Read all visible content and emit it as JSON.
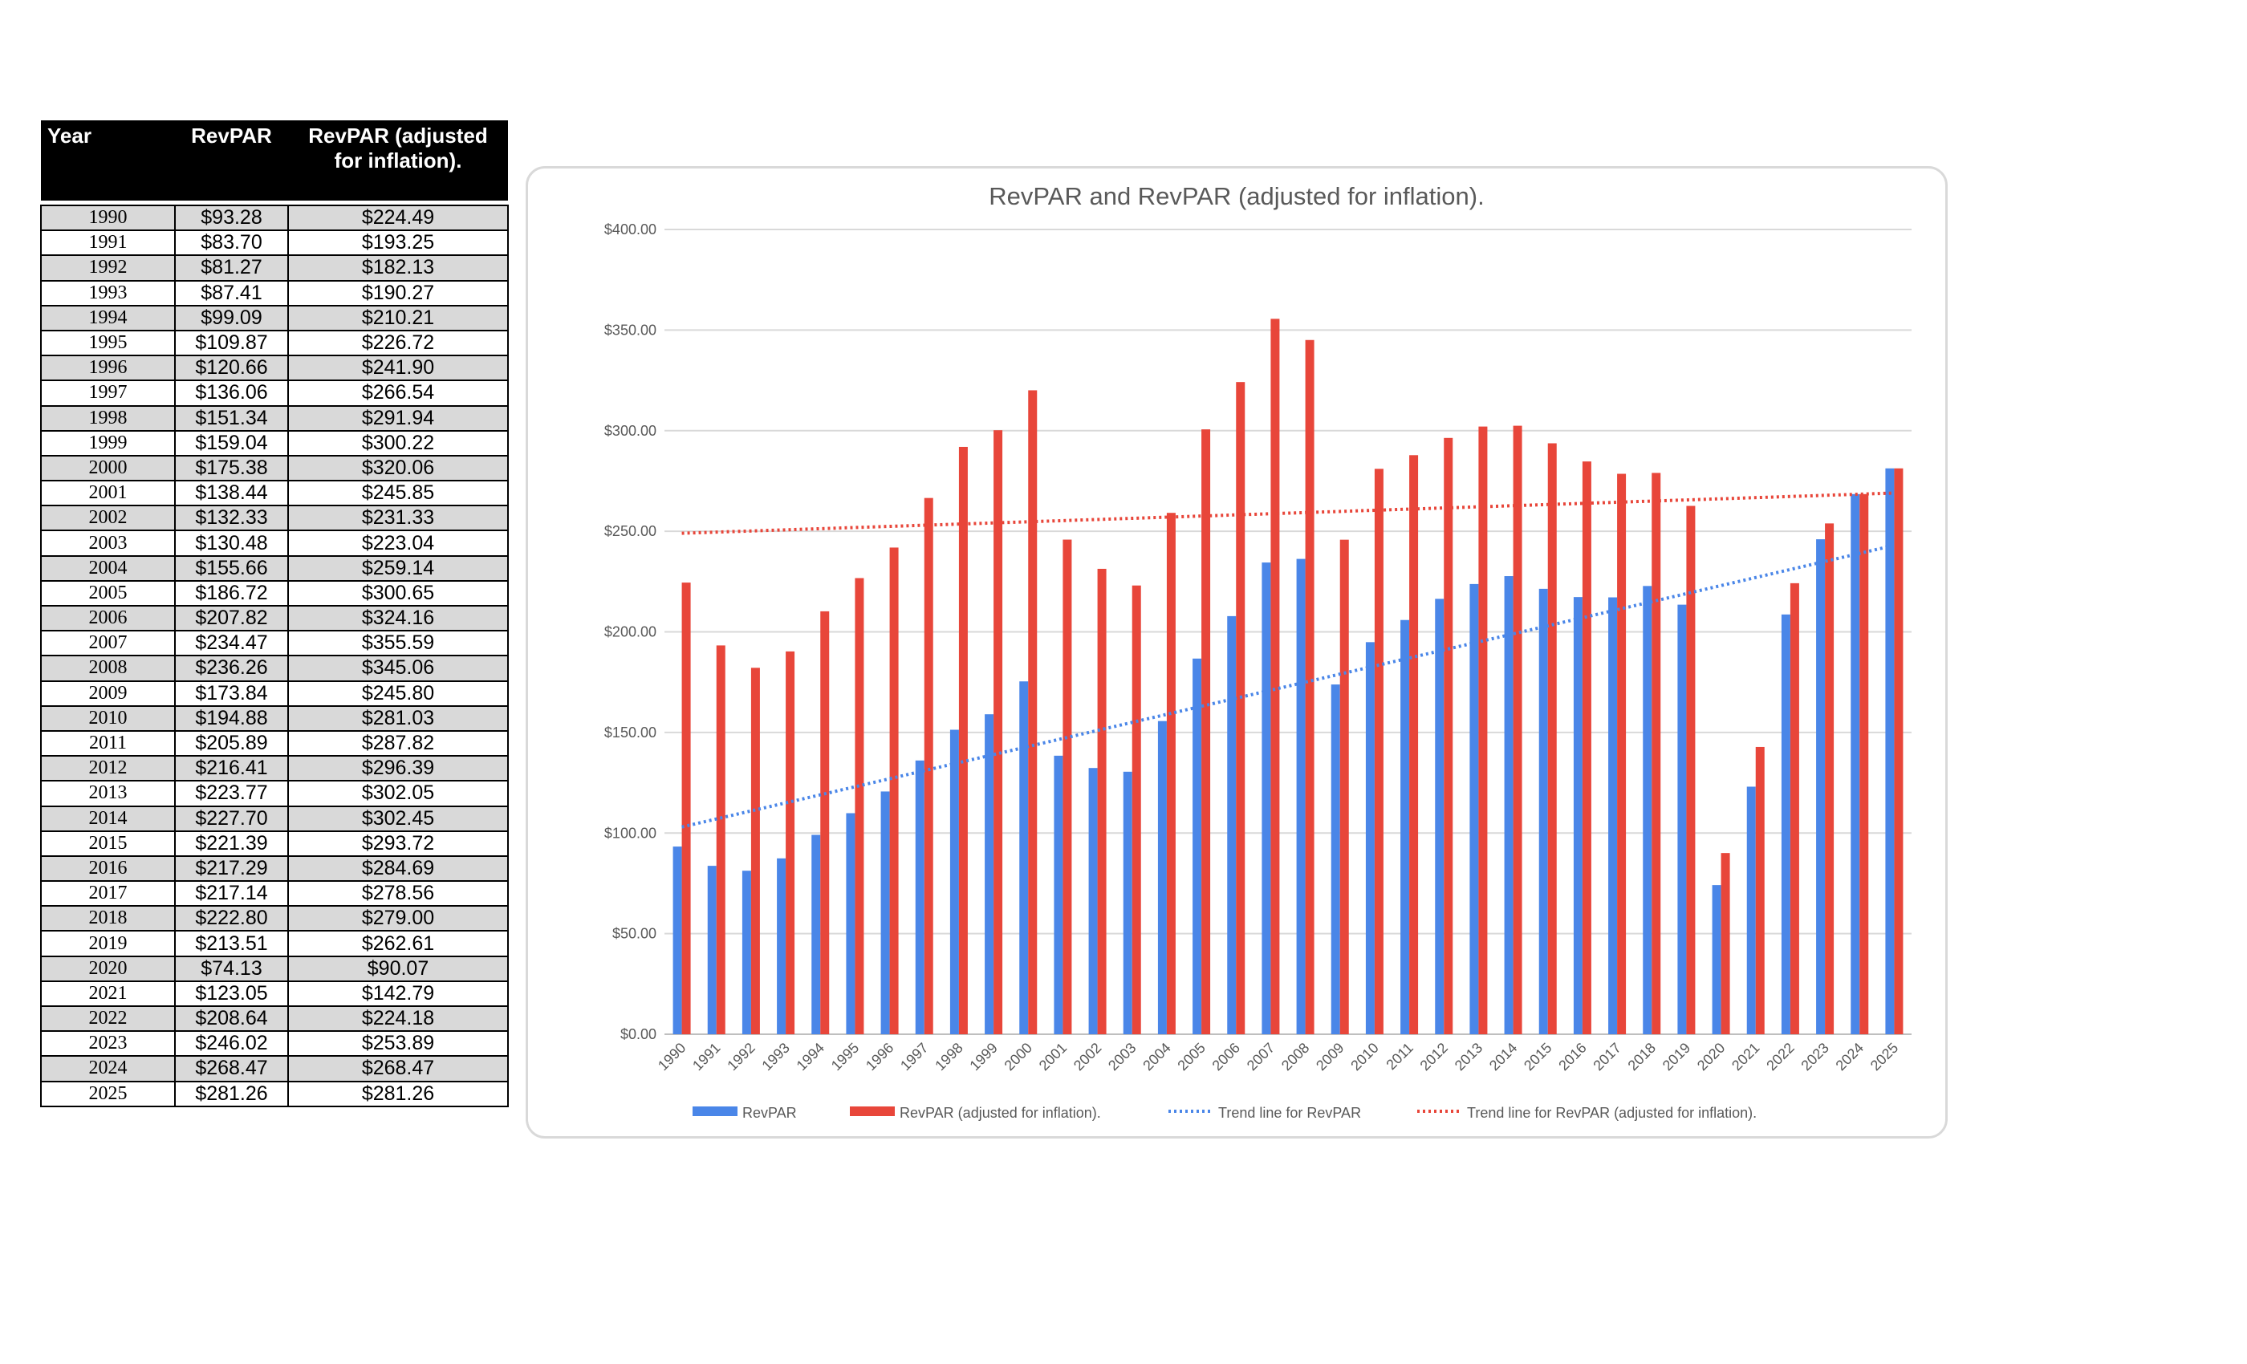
{
  "table": {
    "headers": {
      "year": "Year",
      "revpar": "RevPAR",
      "adjusted_line1": "RevPAR (adjusted",
      "adjusted_line2": "for inflation)."
    },
    "rows": [
      {
        "year": "1990",
        "revpar": "$93.28",
        "adjusted": "$224.49"
      },
      {
        "year": "1991",
        "revpar": "$83.70",
        "adjusted": "$193.25"
      },
      {
        "year": "1992",
        "revpar": "$81.27",
        "adjusted": "$182.13"
      },
      {
        "year": "1993",
        "revpar": "$87.41",
        "adjusted": "$190.27"
      },
      {
        "year": "1994",
        "revpar": "$99.09",
        "adjusted": "$210.21"
      },
      {
        "year": "1995",
        "revpar": "$109.87",
        "adjusted": "$226.72"
      },
      {
        "year": "1996",
        "revpar": "$120.66",
        "adjusted": "$241.90"
      },
      {
        "year": "1997",
        "revpar": "$136.06",
        "adjusted": "$266.54"
      },
      {
        "year": "1998",
        "revpar": "$151.34",
        "adjusted": "$291.94"
      },
      {
        "year": "1999",
        "revpar": "$159.04",
        "adjusted": "$300.22"
      },
      {
        "year": "2000",
        "revpar": "$175.38",
        "adjusted": "$320.06"
      },
      {
        "year": "2001",
        "revpar": "$138.44",
        "adjusted": "$245.85"
      },
      {
        "year": "2002",
        "revpar": "$132.33",
        "adjusted": "$231.33"
      },
      {
        "year": "2003",
        "revpar": "$130.48",
        "adjusted": "$223.04"
      },
      {
        "year": "2004",
        "revpar": "$155.66",
        "adjusted": "$259.14"
      },
      {
        "year": "2005",
        "revpar": "$186.72",
        "adjusted": "$300.65"
      },
      {
        "year": "2006",
        "revpar": "$207.82",
        "adjusted": "$324.16"
      },
      {
        "year": "2007",
        "revpar": "$234.47",
        "adjusted": "$355.59"
      },
      {
        "year": "2008",
        "revpar": "$236.26",
        "adjusted": "$345.06"
      },
      {
        "year": "2009",
        "revpar": "$173.84",
        "adjusted": "$245.80"
      },
      {
        "year": "2010",
        "revpar": "$194.88",
        "adjusted": "$281.03"
      },
      {
        "year": "2011",
        "revpar": "$205.89",
        "adjusted": "$287.82"
      },
      {
        "year": "2012",
        "revpar": "$216.41",
        "adjusted": "$296.39"
      },
      {
        "year": "2013",
        "revpar": "$223.77",
        "adjusted": "$302.05"
      },
      {
        "year": "2014",
        "revpar": "$227.70",
        "adjusted": "$302.45"
      },
      {
        "year": "2015",
        "revpar": "$221.39",
        "adjusted": "$293.72"
      },
      {
        "year": "2016",
        "revpar": "$217.29",
        "adjusted": "$284.69"
      },
      {
        "year": "2017",
        "revpar": "$217.14",
        "adjusted": "$278.56"
      },
      {
        "year": "2018",
        "revpar": "$222.80",
        "adjusted": "$279.00"
      },
      {
        "year": "2019",
        "revpar": "$213.51",
        "adjusted": "$262.61"
      },
      {
        "year": "2020",
        "revpar": "$74.13",
        "adjusted": "$90.07"
      },
      {
        "year": "2021",
        "revpar": "$123.05",
        "adjusted": "$142.79"
      },
      {
        "year": "2022",
        "revpar": "$208.64",
        "adjusted": "$224.18"
      },
      {
        "year": "2023",
        "revpar": "$246.02",
        "adjusted": "$253.89"
      },
      {
        "year": "2024",
        "revpar": "$268.47",
        "adjusted": "$268.47"
      },
      {
        "year": "2025",
        "revpar": "$281.26",
        "adjusted": "$281.26"
      }
    ]
  },
  "chart_data": {
    "type": "bar",
    "title": "RevPAR and RevPAR (adjusted for inflation).",
    "xlabel": "",
    "ylabel": "",
    "ylim": [
      0,
      400
    ],
    "y_ticks": [
      "$0.00",
      "$50.00",
      "$100.00",
      "$150.00",
      "$200.00",
      "$250.00",
      "$300.00",
      "$350.00",
      "$400.00"
    ],
    "y_tick_values": [
      0,
      50,
      100,
      150,
      200,
      250,
      300,
      350,
      400
    ],
    "grid": true,
    "legend_position": "bottom",
    "categories": [
      "1990",
      "1991",
      "1992",
      "1993",
      "1994",
      "1995",
      "1996",
      "1997",
      "1998",
      "1999",
      "2000",
      "2001",
      "2002",
      "2003",
      "2004",
      "2005",
      "2006",
      "2007",
      "2008",
      "2009",
      "2010",
      "2011",
      "2012",
      "2013",
      "2014",
      "2015",
      "2016",
      "2017",
      "2018",
      "2019",
      "2020",
      "2021",
      "2022",
      "2023",
      "2024",
      "2025"
    ],
    "series": [
      {
        "name": "RevPAR",
        "color": "#4a86e8",
        "values": [
          93.28,
          83.7,
          81.27,
          87.41,
          99.09,
          109.87,
          120.66,
          136.06,
          151.34,
          159.04,
          175.38,
          138.44,
          132.33,
          130.48,
          155.66,
          186.72,
          207.82,
          234.47,
          236.26,
          173.84,
          194.88,
          205.89,
          216.41,
          223.77,
          227.7,
          221.39,
          217.29,
          217.14,
          222.8,
          213.51,
          74.13,
          123.05,
          208.64,
          246.02,
          268.47,
          281.26
        ]
      },
      {
        "name": "RevPAR (adjusted for inflation).",
        "color": "#e8463a",
        "values": [
          224.49,
          193.25,
          182.13,
          190.27,
          210.21,
          226.72,
          241.9,
          266.54,
          291.94,
          300.22,
          320.06,
          245.85,
          231.33,
          223.04,
          259.14,
          300.65,
          324.16,
          355.59,
          345.06,
          245.8,
          281.03,
          287.82,
          296.39,
          302.05,
          302.45,
          293.72,
          284.69,
          278.56,
          279.0,
          262.61,
          90.07,
          142.79,
          224.18,
          253.89,
          268.47,
          281.26
        ]
      }
    ],
    "trendlines": [
      {
        "name": "Trend line for RevPAR",
        "color": "#4a86e8",
        "style": "dotted",
        "start": 103,
        "end": 243
      },
      {
        "name": "Trend line for RevPAR (adjusted for inflation).",
        "color": "#e8463a",
        "style": "dotted",
        "start": 249,
        "end": 269
      }
    ]
  }
}
